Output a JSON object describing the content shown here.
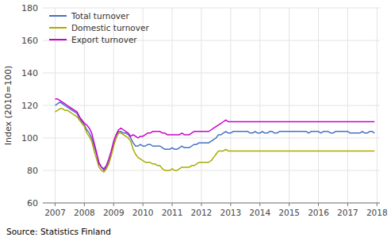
{
  "chart_data": {
    "type": "line",
    "ylabel": "Index (2010=100)",
    "annotation": "Source: Statistics Finland",
    "xlim": [
      2006.58,
      2018.1
    ],
    "xticks": [
      2007,
      2008,
      2009,
      2010,
      2011,
      2012,
      2013,
      2014,
      2015,
      2016,
      2017,
      2018
    ],
    "ylim": [
      60,
      180
    ],
    "yticks": [
      60,
      80,
      100,
      120,
      140,
      160,
      180
    ],
    "grid": true,
    "legend": "upper left",
    "x": [
      2007,
      2007.0833,
      2007.1667,
      2007.25,
      2007.3333,
      2007.4167,
      2007.5,
      2007.5833,
      2007.6667,
      2007.75,
      2007.8333,
      2007.9167,
      2008,
      2008.0833,
      2008.1667,
      2008.25,
      2008.3333,
      2008.4167,
      2008.5,
      2008.5833,
      2008.6667,
      2008.75,
      2008.8333,
      2008.9167,
      2009,
      2009.0833,
      2009.1667,
      2009.25,
      2009.3333,
      2009.4167,
      2009.5,
      2009.5833,
      2009.6667,
      2009.75,
      2009.8333,
      2009.9167,
      2010,
      2010.0833,
      2010.1667,
      2010.25,
      2010.3333,
      2010.4167,
      2010.5,
      2010.5833,
      2010.6667,
      2010.75,
      2010.8333,
      2010.9167,
      2011,
      2011.0833,
      2011.1667,
      2011.25,
      2011.3333,
      2011.4167,
      2011.5,
      2011.5833,
      2011.6667,
      2011.75,
      2011.8333,
      2011.9167,
      2012,
      2012.0833,
      2012.1667,
      2012.25,
      2012.3333,
      2012.4167,
      2012.5,
      2012.5833,
      2012.6667,
      2012.75,
      2012.8333,
      2012.9167,
      2013,
      2013.0833,
      2013.1667,
      2013.25,
      2013.3333,
      2013.4167,
      2013.5,
      2013.5833,
      2013.6667,
      2013.75,
      2013.8333,
      2013.9167,
      2014,
      2014.0833,
      2014.1667,
      2014.25,
      2014.3333,
      2014.4167,
      2014.5,
      2014.5833,
      2014.6667,
      2014.75,
      2014.8333,
      2014.9167,
      2015,
      2015.0833,
      2015.1667,
      2015.25,
      2015.3333,
      2015.4167,
      2015.5,
      2015.5833,
      2015.6667,
      2015.75,
      2015.8333,
      2015.9167,
      2016,
      2016.0833,
      2016.1667,
      2016.25,
      2016.3333,
      2016.4167,
      2016.5,
      2016.5833,
      2016.6667,
      2016.75,
      2016.8333,
      2016.9167,
      2017,
      2017.0833,
      2017.1667,
      2017.25,
      2017.3333,
      2017.4167,
      2017.5,
      2017.5833,
      2017.6667,
      2017.75,
      2017.8333,
      2017.9167
    ],
    "series": [
      {
        "name": "Total turnover",
        "color": "#4472C4",
        "values": [
          120,
          121,
          122,
          121,
          120,
          119,
          118,
          117,
          116,
          115,
          112,
          110,
          108,
          105,
          103,
          100,
          95,
          90,
          85,
          82,
          80,
          82,
          85,
          90,
          96,
          100,
          104,
          104,
          103,
          103,
          102,
          100,
          97,
          95,
          95,
          96,
          95,
          95,
          96,
          96,
          95,
          95,
          95,
          95,
          94,
          93,
          93,
          93,
          94,
          93,
          93,
          94,
          95,
          94,
          94,
          94,
          95,
          96,
          96,
          97,
          97,
          97,
          97,
          97,
          98,
          99,
          100,
          102,
          102,
          103,
          104,
          103,
          103,
          104,
          104,
          104,
          104,
          104,
          104,
          104,
          103,
          103,
          104,
          103,
          103,
          104,
          103,
          103,
          104,
          104,
          103,
          103,
          104,
          104,
          104,
          104,
          104,
          104,
          104,
          104,
          104,
          104,
          104,
          104,
          103,
          104,
          104,
          104,
          104,
          103,
          104,
          104,
          104,
          103,
          103,
          104,
          104,
          104,
          104,
          104,
          104,
          103,
          103,
          103,
          103,
          103,
          104,
          103,
          103,
          104,
          104,
          103
        ]
      },
      {
        "name": "Domestic turnover",
        "color": "#AAAA00",
        "values": [
          116,
          117,
          118,
          118,
          117,
          117,
          116,
          115,
          114,
          113,
          111,
          109,
          107,
          103,
          101,
          98,
          92,
          87,
          82,
          80,
          79,
          81,
          84,
          89,
          95,
          100,
          103,
          103,
          102,
          101,
          100,
          98,
          93,
          90,
          88,
          87,
          86,
          85,
          85,
          85,
          84,
          84,
          83,
          83,
          81,
          80,
          80,
          80,
          81,
          80,
          80,
          81,
          82,
          82,
          82,
          82,
          83,
          83,
          84,
          85,
          85,
          85,
          85,
          85,
          86,
          88,
          90,
          92,
          92,
          92,
          93,
          92,
          92,
          92,
          92,
          92,
          92,
          92,
          92,
          92,
          92,
          92,
          92,
          92,
          92,
          92,
          92,
          92,
          92,
          92,
          92,
          92,
          92,
          92,
          92,
          92,
          92,
          92,
          92,
          92,
          92,
          92,
          92,
          92,
          92,
          92,
          92,
          92,
          92,
          92,
          92,
          92,
          92,
          92,
          92,
          92,
          92,
          92,
          92,
          92,
          92,
          92,
          92,
          92,
          92,
          92,
          92,
          92,
          92,
          92,
          92,
          92
        ]
      },
      {
        "name": "Export turnover",
        "color": "#CC00CC",
        "values": [
          124,
          124,
          123,
          122,
          121,
          120,
          119,
          118,
          117,
          116,
          113,
          111,
          109,
          108,
          106,
          103,
          97,
          91,
          84,
          82,
          81,
          83,
          87,
          92,
          98,
          102,
          105,
          106,
          105,
          104,
          103,
          101,
          102,
          101,
          100,
          101,
          101,
          102,
          103,
          103,
          104,
          104,
          104,
          104,
          103,
          103,
          102,
          102,
          102,
          102,
          102,
          102,
          103,
          102,
          102,
          102,
          103,
          104,
          104,
          104,
          104,
          104,
          104,
          104,
          105,
          106,
          107,
          108,
          109,
          110,
          111,
          110,
          110,
          110,
          110,
          110,
          110,
          110,
          110,
          110,
          110,
          110,
          110,
          110,
          110,
          110,
          110,
          110,
          110,
          110,
          110,
          110,
          110,
          110,
          110,
          110,
          110,
          110,
          110,
          110,
          110,
          110,
          110,
          110,
          110,
          110,
          110,
          110,
          110,
          110,
          110,
          110,
          110,
          110,
          110,
          110,
          110,
          110,
          110,
          110,
          110,
          110,
          110,
          110,
          110,
          110,
          110,
          110,
          110,
          110,
          110,
          110
        ]
      }
    ]
  }
}
